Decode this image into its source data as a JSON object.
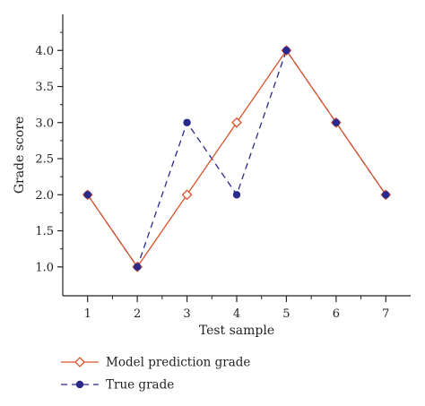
{
  "colors": {
    "model_line": "#d9532b",
    "model_marker_fill": "#ffffff",
    "true_line": "#2b2a8c",
    "true_marker": "#2b2a8c",
    "axis": "#222222"
  },
  "chart_data": {
    "type": "line",
    "xlabel": "Test sample",
    "ylabel": "Grade score",
    "x": [
      1,
      2,
      3,
      4,
      5,
      6,
      7
    ],
    "xticks": [
      "1",
      "2",
      "3",
      "4",
      "5",
      "6",
      "7"
    ],
    "xlim": [
      0.5,
      7.5
    ],
    "yticks": [
      "1.0",
      "1.5",
      "2.0",
      "2.5",
      "3.0",
      "3.5",
      "4.0"
    ],
    "ylim": [
      0.6,
      4.5
    ],
    "grid": false,
    "legend_position": "bottom-left",
    "series": [
      {
        "name": "Model prediction grade",
        "values": [
          2,
          1,
          2,
          3,
          4,
          3,
          2
        ],
        "line_style": "solid",
        "marker": "open-diamond"
      },
      {
        "name": "True grade",
        "values": [
          2,
          1,
          3,
          2,
          4,
          3,
          2
        ],
        "line_style": "dashed",
        "marker": "filled-circle"
      }
    ]
  }
}
